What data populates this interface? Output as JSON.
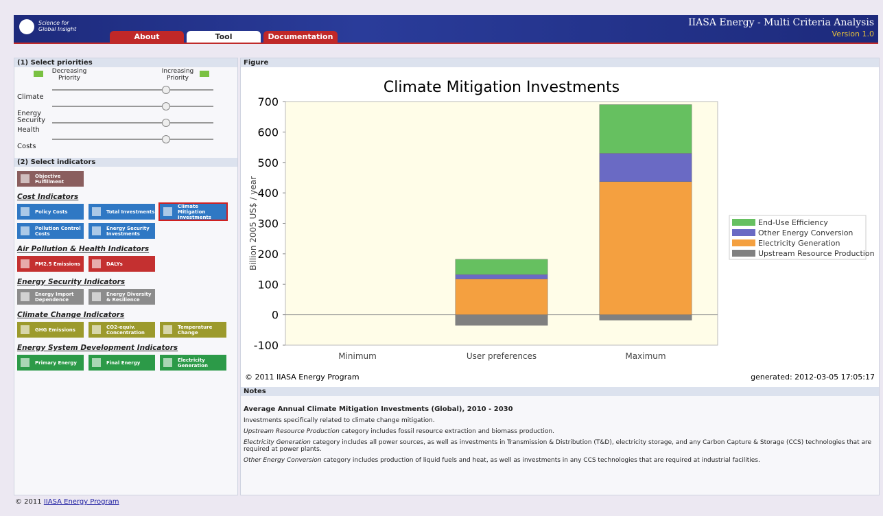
{
  "header": {
    "logo_line1": "Science for",
    "logo_line2": "Global Insight",
    "title": "IIASA Energy - Multi Criteria Analysis",
    "version": "Version 1.0",
    "tabs": [
      {
        "label": "About",
        "active": false
      },
      {
        "label": "Tool",
        "active": true
      },
      {
        "label": "Documentation",
        "active": false
      }
    ]
  },
  "priorities": {
    "heading": "(1) Select priorities",
    "decreasing": "Decreasing Priority",
    "increasing": "Increasing Priority",
    "sliders": [
      "Climate",
      "Energy Security",
      "Health",
      "Costs"
    ]
  },
  "indicators": {
    "heading": "(2) Select indicators",
    "objective": {
      "label": "Objective Fulfillment",
      "color": "#8a5e5e"
    },
    "groups": [
      {
        "title": "Cost Indicators",
        "color": "#2f78c4",
        "buttons": [
          {
            "label": "Policy Costs"
          },
          {
            "label": "Total Investments"
          },
          {
            "label": "Climate Mitigation Investments",
            "selected": true
          },
          {
            "label": "Pollution Control Costs"
          },
          {
            "label": "Energy Security Investments"
          }
        ]
      },
      {
        "title": "Air Pollution & Health Indicators",
        "color": "#c43030",
        "buttons": [
          {
            "label": "PM2.5 Emissions"
          },
          {
            "label": "DALYs"
          }
        ]
      },
      {
        "title": "Energy Security Indicators",
        "color": "#8c8c8c",
        "buttons": [
          {
            "label": "Energy Import Dependence"
          },
          {
            "label": "Energy Diversity & Resilience"
          }
        ]
      },
      {
        "title": "Climate Change Indicators",
        "color": "#9c9a2c",
        "buttons": [
          {
            "label": "GHG Emissions"
          },
          {
            "label": "CO2-equiv. Concentration"
          },
          {
            "label": "Temperature Change"
          }
        ]
      },
      {
        "title": "Energy System Development Indicators",
        "color": "#2c9a48",
        "buttons": [
          {
            "label": "Primary Energy"
          },
          {
            "label": "Final Energy"
          },
          {
            "label": "Electricity Generation"
          }
        ]
      }
    ]
  },
  "figure": {
    "heading": "Figure",
    "copyright": "© 2011 IIASA Energy Program",
    "generated": "generated: 2012-03-05 17:05:17"
  },
  "chart_data": {
    "type": "stacked_bar",
    "title": "Climate Mitigation Investments",
    "y_label": "Billion 2005 US$ / year",
    "categories": [
      "Minimum",
      "User preferences",
      "Maximum"
    ],
    "series": [
      {
        "name": "Upstream Resource Production",
        "color": "#808080",
        "values": [
          0,
          -35,
          -18
        ]
      },
      {
        "name": "Electricity Generation",
        "color": "#f4a040",
        "values": [
          0,
          117,
          437
        ]
      },
      {
        "name": "Other Energy Conversion",
        "color": "#6a6ac4",
        "values": [
          0,
          15,
          93
        ]
      },
      {
        "name": "End-Use Efficiency",
        "color": "#66c060",
        "values": [
          0,
          50,
          160
        ]
      }
    ],
    "ylim": [
      -100,
      700
    ],
    "yticks": [
      -100,
      0,
      100,
      200,
      300,
      400,
      500,
      600,
      700
    ],
    "grid": false,
    "legend": "right"
  },
  "notes": {
    "heading": "Notes",
    "title": "Average Annual Climate Mitigation Investments (Global), 2010 - 2030",
    "intro": "Investments specifically related to climate change mitigation.",
    "items": [
      {
        "term": "Upstream Resource Production",
        "text": "category includes fossil resource extraction and biomass production."
      },
      {
        "term": "Electricity Generation",
        "text": "category includes all power sources, as well as investments in Transmission & Distribution (T&D), electricity storage, and any Carbon Capture & Storage (CCS) technologies that are required at power plants."
      },
      {
        "term": "Other Energy Conversion",
        "text": "category includes production of liquid fuels and heat, as well as investments in any CCS technologies that are required at industrial facilities."
      }
    ]
  },
  "footer": {
    "prefix": "© 2011",
    "link": "IIASA Energy Program"
  }
}
